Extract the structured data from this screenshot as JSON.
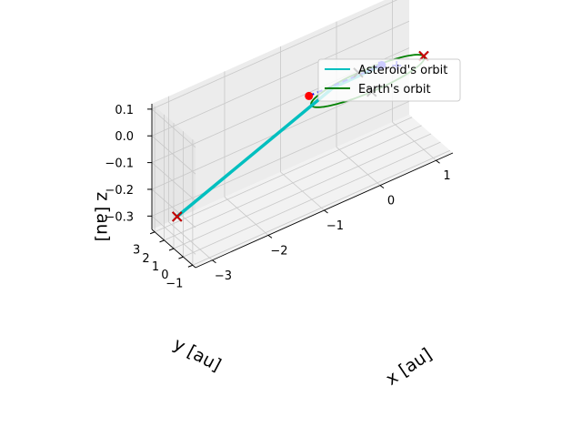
{
  "chart_data": {
    "type": "line",
    "projection": "3d",
    "legend_position": "upper right",
    "grid": true,
    "xlabel": "x [au]",
    "ylabel": "y [au]",
    "zlabel": "z [au]",
    "xlim": [
      -3.3,
      1.3
    ],
    "ylim": [
      -1.3,
      3.3
    ],
    "zlim": [
      -0.35,
      0.12
    ],
    "x_ticks": [
      -3,
      -2,
      -1,
      0,
      1
    ],
    "x_tick_labels": [
      "−3",
      "−2",
      "−1",
      "0",
      "1"
    ],
    "y_ticks": [
      -1,
      0,
      1,
      2,
      3
    ],
    "y_tick_labels": [
      "−1",
      "0",
      "1",
      "2",
      "3"
    ],
    "z_ticks": [
      -0.3,
      -0.2,
      -0.1,
      0.0,
      0.1
    ],
    "z_tick_labels": [
      "−0.3",
      "−0.2",
      "−0.1",
      "0.0",
      "0.1"
    ],
    "series": [
      {
        "name": "Asteroid's orbit",
        "color": "#00bfbf",
        "points": [
          [
            -2.9,
            3.0,
            -0.33
          ],
          [
            -0.5,
            0.7,
            0.0
          ],
          [
            0.2,
            -0.3,
            0.05
          ]
        ]
      },
      {
        "name": "Earth's orbit",
        "color": "#008000",
        "circle": {
          "center": [
            0,
            0,
            0
          ],
          "radius": 1.0
        }
      }
    ],
    "path_segment": {
      "color": "#0000ff",
      "style": "dashed",
      "points": [
        [
          -0.9,
          0.9,
          0.0
        ],
        [
          0.2,
          -0.3,
          0.05
        ]
      ]
    },
    "markers": [
      {
        "symbol": "x",
        "color": "#000000",
        "point": [
          -2.9,
          3.0,
          -0.33
        ]
      },
      {
        "symbol": "x",
        "color": "#cc0000",
        "point": [
          -2.9,
          3.0,
          -0.33
        ]
      },
      {
        "symbol": "x",
        "color": "#000000",
        "point": [
          1.0,
          0.0,
          0.0
        ]
      },
      {
        "symbol": "x",
        "color": "#cc0000",
        "point": [
          1.0,
          0.0,
          0.0
        ]
      },
      {
        "symbol": "x",
        "color": "#000000",
        "point": [
          0.0,
          1.0,
          0.0
        ]
      },
      {
        "symbol": "x",
        "color": "#000000",
        "point": [
          -0.1,
          -1.0,
          0.0
        ]
      },
      {
        "symbol": "+",
        "color": "#0000ff",
        "point": [
          0.55,
          0.2,
          0.0
        ]
      },
      {
        "symbol": "+",
        "color": "#0000ff",
        "point": [
          0.15,
          -0.3,
          0.05
        ]
      },
      {
        "symbol": "o",
        "color": "#ff0000",
        "point": [
          -0.9,
          0.9,
          0.0
        ]
      },
      {
        "symbol": "o",
        "color": "#0000ff",
        "point": [
          0.2,
          -0.3,
          0.05
        ]
      }
    ]
  }
}
